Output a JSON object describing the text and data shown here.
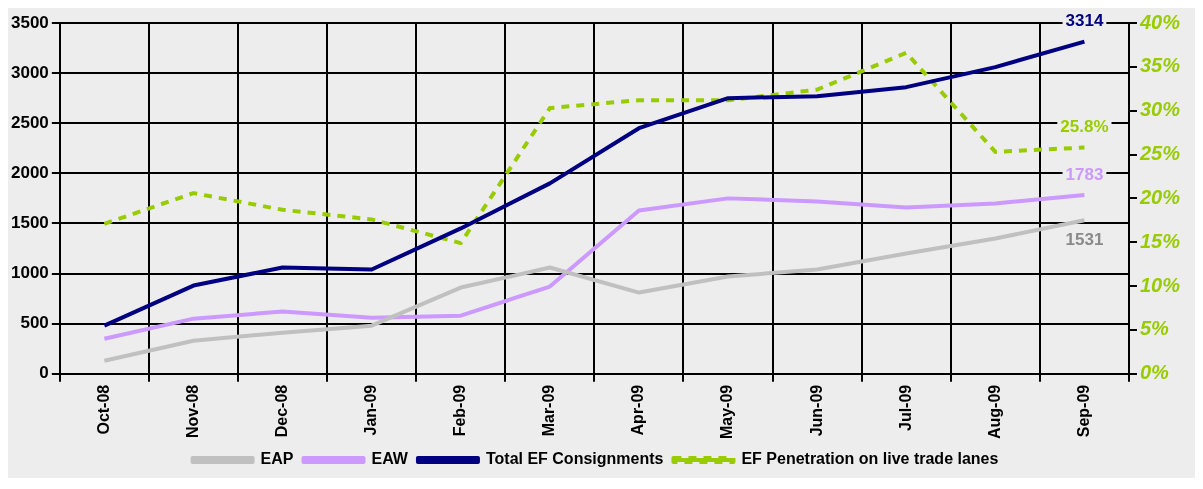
{
  "chart_data": {
    "type": "line",
    "categories": [
      "Oct-08",
      "Nov-08",
      "Dec-08",
      "Jan-09",
      "Feb-09",
      "Mar-09",
      "Apr-09",
      "May-09",
      "Jun-09",
      "Jul-09",
      "Aug-09",
      "Sep-09"
    ],
    "series": [
      {
        "name": "EAP",
        "color": "#c0c0c0",
        "values": [
          130,
          330,
          410,
          480,
          860,
          1060,
          810,
          970,
          1040,
          1200,
          1350,
          1531
        ],
        "value_labels": [
          null,
          null,
          null,
          null,
          null,
          null,
          null,
          null,
          null,
          null,
          null,
          "1531"
        ]
      },
      {
        "name": "EAW",
        "color": "#cc99ff",
        "values": [
          350,
          550,
          620,
          560,
          580,
          870,
          1630,
          1750,
          1720,
          1660,
          1700,
          1783
        ],
        "value_labels": [
          null,
          null,
          null,
          null,
          null,
          null,
          null,
          null,
          null,
          null,
          null,
          "1783"
        ]
      },
      {
        "name": "Total EF Consignments",
        "color": "#000080",
        "values": [
          480,
          880,
          1060,
          1040,
          1450,
          1900,
          2450,
          2750,
          2770,
          2860,
          3060,
          3314
        ],
        "value_labels": [
          null,
          null,
          null,
          null,
          null,
          null,
          null,
          null,
          null,
          null,
          null,
          "3314"
        ]
      },
      {
        "name": "EF Penetration on live trade lanes",
        "color": "#99cc00",
        "axis": "y2",
        "line_style": "dashed",
        "values": [
          17.1,
          20.6,
          18.7,
          17.6,
          14.9,
          30.3,
          31.2,
          31.2,
          32.4,
          36.6,
          25.3,
          25.8
        ],
        "value_labels": [
          null,
          null,
          null,
          null,
          null,
          null,
          null,
          null,
          null,
          null,
          null,
          "25.8%"
        ]
      }
    ],
    "ylim": [
      0,
      3500
    ],
    "yticks": [
      0,
      500,
      1000,
      1500,
      2000,
      2500,
      3000,
      3500
    ],
    "y2lim": [
      0,
      40
    ],
    "y2ticks": [
      {
        "value": 0,
        "label": "0%"
      },
      {
        "value": 5,
        "label": "5%"
      },
      {
        "value": 10,
        "label": "10%"
      },
      {
        "value": 15,
        "label": "15%"
      },
      {
        "value": 20,
        "label": "20%"
      },
      {
        "value": 25,
        "label": "25%"
      },
      {
        "value": 30,
        "label": "30%"
      },
      {
        "value": 35,
        "label": "35%"
      },
      {
        "value": 40,
        "label": "40%"
      }
    ],
    "grid": true,
    "legend": "bottom",
    "marker": "none"
  }
}
